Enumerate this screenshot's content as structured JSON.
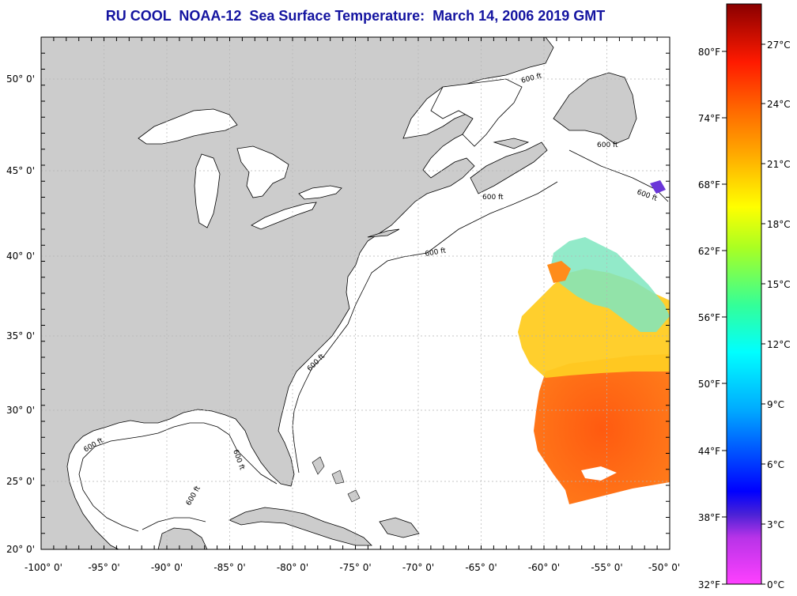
{
  "title": "RU COOL  NOAA-12  Sea Surface Temperature:  March 14, 2006 2019 GMT",
  "map": {
    "lat_labels": [
      "50° 0'",
      "45° 0'",
      "40° 0'",
      "35° 0'",
      "30° 0'",
      "25° 0'",
      "20° 0'"
    ],
    "lon_labels": [
      "-100° 0'",
      "-95° 0'",
      "-90° 0'",
      "-85° 0'",
      "-80° 0'",
      "-75° 0'",
      "-70° 0'",
      "-65° 0'",
      "-60° 0'",
      "-55° 0'",
      "-50° 0'"
    ],
    "isobath_label": "600 ft",
    "colors": {
      "land": "#cccccc",
      "ocean": "#ffffff",
      "title": "#1414a0",
      "grid": "#b4b4b4"
    }
  },
  "colorbar": {
    "fahrenheit_labels": [
      "80°F",
      "74°F",
      "68°F",
      "62°F",
      "56°F",
      "50°F",
      "44°F",
      "38°F",
      "32°F"
    ],
    "celsius_labels": [
      "27°C",
      "24°C",
      "21°C",
      "18°C",
      "15°C",
      "12°C",
      "9°C",
      "6°C",
      "3°C",
      "0°C"
    ],
    "colors": [
      "#ff40ff",
      "#8a2be2",
      "#0000ff",
      "#00aaff",
      "#00ffff",
      "#33ff66",
      "#ffff00",
      "#ff9900",
      "#ff4000",
      "#cc0000",
      "#8a0000"
    ]
  }
}
